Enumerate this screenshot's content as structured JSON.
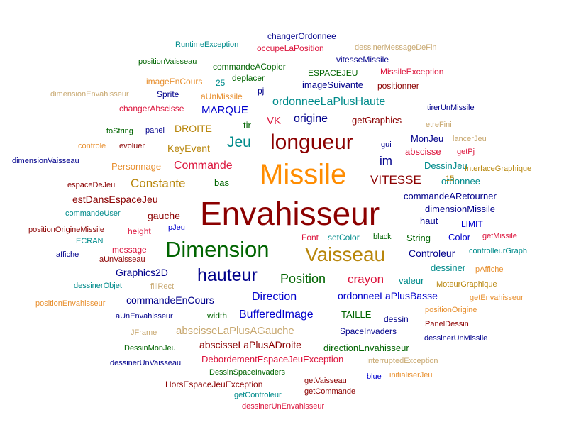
{
  "colors": {
    "dark_red": "#8b0000",
    "orange": "#ff8c00",
    "green": "#006400",
    "navy": "#00008b",
    "gold": "#b8860b",
    "red": "#dc143c",
    "teal": "#008b8b",
    "tan": "#c8a870",
    "blue": "#0000cd",
    "light_orange": "#e89030"
  },
  "words": [
    {
      "text": "Envahisseur",
      "color": "#8b0000"
    },
    {
      "text": "Missile",
      "color": "#ff8c00"
    },
    {
      "text": "Dimension",
      "color": "#006400"
    },
    {
      "text": "longueur",
      "color": "#8b0000"
    },
    {
      "text": "Vaisseau",
      "color": "#b8860b"
    },
    {
      "text": "hauteur",
      "color": "#00008b"
    },
    {
      "text": "Jeu",
      "color": "#008b8b"
    },
    {
      "text": "Position",
      "color": "#006400"
    },
    {
      "text": "Constante",
      "color": "#b8860b"
    },
    {
      "text": "VITESSE",
      "color": "#8b0000"
    },
    {
      "text": "Commande",
      "color": "#dc143c"
    },
    {
      "text": "crayon",
      "color": "#dc143c"
    },
    {
      "text": "ordonneeLaPlusHaute",
      "color": "#008b8b"
    },
    {
      "text": "origine",
      "color": "#00008b"
    },
    {
      "text": "MARQUE",
      "color": "#0000cd"
    },
    {
      "text": "Direction",
      "color": "#0000cd"
    },
    {
      "text": "BufferedImage",
      "color": "#0000cd"
    },
    {
      "text": "abscisseLaPlusAGauche",
      "color": "#c8a870"
    },
    {
      "text": "ordonneeLaPlusBasse",
      "color": "#0000cd"
    },
    {
      "text": "commandeEnCours",
      "color": "#00008b"
    },
    {
      "text": "im",
      "color": "#00008b"
    },
    {
      "text": "KeyEvent",
      "color": "#b8860b"
    },
    {
      "text": "DROITE",
      "color": "#b8860b"
    },
    {
      "text": "abscisseLaPlusADroite",
      "color": "#8b0000"
    },
    {
      "text": "estDansEspaceJeu",
      "color": "#8b0000"
    },
    {
      "text": "gauche",
      "color": "#8b0000"
    },
    {
      "text": "Controleur",
      "color": "#00008b"
    },
    {
      "text": "Graphics2D",
      "color": "#00008b"
    },
    {
      "text": "commandeARetourner",
      "color": "#00008b"
    },
    {
      "text": "dimensionMissile",
      "color": "#00008b"
    },
    {
      "text": "String",
      "color": "#006400"
    },
    {
      "text": "Color",
      "color": "#0000cd"
    },
    {
      "text": "valeur",
      "color": "#008b8b"
    },
    {
      "text": "DessinJeu",
      "color": "#008b8b"
    },
    {
      "text": "ordonnee",
      "color": "#008b8b"
    },
    {
      "text": "abscisse",
      "color": "#dc143c"
    },
    {
      "text": "imageSuivante",
      "color": "#00008b"
    },
    {
      "text": "getGraphics",
      "color": "#8b0000"
    },
    {
      "text": "Personnage",
      "color": "#e89030"
    },
    {
      "text": "VK",
      "color": "#dc143c"
    },
    {
      "text": "tir",
      "color": "#006400"
    },
    {
      "text": "bas",
      "color": "#006400"
    },
    {
      "text": "haut",
      "color": "#00008b"
    },
    {
      "text": "MonJeu",
      "color": "#00008b"
    },
    {
      "text": "dessiner",
      "color": "#008b8b"
    },
    {
      "text": "DebordementEspaceJeuException",
      "color": "#dc143c"
    },
    {
      "text": "directionEnvahisseur",
      "color": "#006400"
    },
    {
      "text": "TAILLE",
      "color": "#006400"
    },
    {
      "text": "SpaceInvaders",
      "color": "#00008b"
    },
    {
      "text": "dessin",
      "color": "#00008b"
    },
    {
      "text": "commandeACopier",
      "color": "#006400"
    },
    {
      "text": "ESPACEJEU",
      "color": "#006400"
    },
    {
      "text": "MissileException",
      "color": "#dc143c"
    },
    {
      "text": "vitesseMissile",
      "color": "#00008b"
    },
    {
      "text": "changerOrdonnee",
      "color": "#00008b"
    },
    {
      "text": "occupeLaPosition",
      "color": "#dc143c"
    },
    {
      "text": "RuntimeException",
      "color": "#008b8b"
    },
    {
      "text": "dessinerMessageDeFin",
      "color": "#c8a870"
    },
    {
      "text": "positionVaisseau",
      "color": "#006400"
    },
    {
      "text": "imageEnCours",
      "color": "#e89030"
    },
    {
      "text": "25",
      "color": "#008b8b"
    },
    {
      "text": "deplacer",
      "color": "#006400"
    },
    {
      "text": "positionner",
      "color": "#8b0000"
    },
    {
      "text": "dimensionEnvahisseur",
      "color": "#c8a870"
    },
    {
      "text": "Sprite",
      "color": "#00008b"
    },
    {
      "text": "aUnMissile",
      "color": "#e89030"
    },
    {
      "text": "pj",
      "color": "#00008b"
    },
    {
      "text": "changerAbscisse",
      "color": "#dc143c"
    },
    {
      "text": "tirerUnMissile",
      "color": "#00008b"
    },
    {
      "text": "toString",
      "color": "#006400"
    },
    {
      "text": "panel",
      "color": "#00008b"
    },
    {
      "text": "controle",
      "color": "#e89030"
    },
    {
      "text": "evoluer",
      "color": "#8b0000"
    },
    {
      "text": "gui",
      "color": "#00008b"
    },
    {
      "text": "lancerJeu",
      "color": "#c8a870"
    },
    {
      "text": "getPj",
      "color": "#dc143c"
    },
    {
      "text": "dimensionVaisseau",
      "color": "#00008b"
    },
    {
      "text": "InterfaceGraphique",
      "color": "#b8860b"
    },
    {
      "text": "espaceDeJeu",
      "color": "#8b0000"
    },
    {
      "text": "15",
      "color": "#b8860b"
    },
    {
      "text": "commandeUser",
      "color": "#008b8b"
    },
    {
      "text": "LIMIT",
      "color": "#0000cd"
    },
    {
      "text": "positionOrigineMissile",
      "color": "#8b0000"
    },
    {
      "text": "height",
      "color": "#dc143c"
    },
    {
      "text": "pJeu",
      "color": "#0000cd"
    },
    {
      "text": "Font",
      "color": "#dc143c"
    },
    {
      "text": "setColor",
      "color": "#008b8b"
    },
    {
      "text": "black",
      "color": "#006400"
    },
    {
      "text": "getMissile",
      "color": "#dc143c"
    },
    {
      "text": "ECRAN",
      "color": "#008b8b"
    },
    {
      "text": "message",
      "color": "#dc143c"
    },
    {
      "text": "affiche",
      "color": "#00008b"
    },
    {
      "text": "aUnVaisseau",
      "color": "#8b0000"
    },
    {
      "text": "controlleurGraph",
      "color": "#008b8b"
    },
    {
      "text": "pAffiche",
      "color": "#e89030"
    },
    {
      "text": "dessinerObjet",
      "color": "#008b8b"
    },
    {
      "text": "fillRect",
      "color": "#c8a870"
    },
    {
      "text": "MoteurGraphique",
      "color": "#b8860b"
    },
    {
      "text": "getEnvahisseur",
      "color": "#e89030"
    },
    {
      "text": "positionEnvahisseur",
      "color": "#e89030"
    },
    {
      "text": "width",
      "color": "#006400"
    },
    {
      "text": "positionOrigine",
      "color": "#e89030"
    },
    {
      "text": "aUnEnvahisseur",
      "color": "#00008b"
    },
    {
      "text": "PanelDessin",
      "color": "#8b0000"
    },
    {
      "text": "JFrame",
      "color": "#c8a870"
    },
    {
      "text": "dessinerUnMissile",
      "color": "#00008b"
    },
    {
      "text": "DessinMonJeu",
      "color": "#006400"
    },
    {
      "text": "InterruptedException",
      "color": "#c8a870"
    },
    {
      "text": "dessinerUnVaisseau",
      "color": "#00008b"
    },
    {
      "text": "DessinSpaceInvaders",
      "color": "#006400"
    },
    {
      "text": "initialiserJeu",
      "color": "#e89030"
    },
    {
      "text": "HorsEspaceJeuException",
      "color": "#8b0000"
    },
    {
      "text": "getVaisseau",
      "color": "#8b0000"
    },
    {
      "text": "blue",
      "color": "#0000cd"
    },
    {
      "text": "getControleur",
      "color": "#008b8b"
    },
    {
      "text": "getCommande",
      "color": "#8b0000"
    },
    {
      "text": "dessinerUnEnvahisseur",
      "color": "#dc143c"
    },
    {
      "text": "etreFini",
      "color": "#c8a870"
    }
  ]
}
